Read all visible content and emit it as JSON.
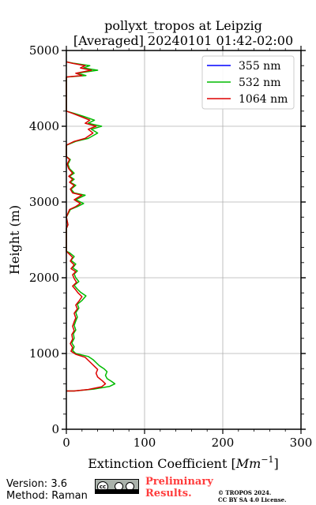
{
  "chart_data": {
    "type": "line",
    "title": "pollyxt_tropos at Leipzig",
    "subtitle": "[Averaged] 20240101 01:42-02:00",
    "xlabel": "Extinction Coefficient [Mm$^{-1}$]",
    "xlabel_text": "Extinction Coefficient [",
    "xlabel_unit": "Mm",
    "xlabel_sup": "−1",
    "xlabel_close": "]",
    "ylabel": "Height (m)",
    "xlim": [
      0,
      300
    ],
    "ylim": [
      0,
      5000
    ],
    "xticks": [
      "0",
      "100",
      "200",
      "300"
    ],
    "yticks": [
      "0",
      "1000",
      "2000",
      "3000",
      "4000",
      "5000"
    ],
    "grid": true,
    "legend_position": "top-right",
    "series": [
      {
        "name": "355 nm",
        "color": "#0000ff",
        "points": []
      },
      {
        "name": "532 nm",
        "color": "#00bb00",
        "points": [
          [
            0,
            505
          ],
          [
            10,
            505
          ],
          [
            35,
            530
          ],
          [
            55,
            565
          ],
          [
            62,
            600
          ],
          [
            58,
            630
          ],
          [
            52,
            670
          ],
          [
            50,
            710
          ],
          [
            52,
            760
          ],
          [
            48,
            800
          ],
          [
            42,
            840
          ],
          [
            38,
            880
          ],
          [
            34,
            920
          ],
          [
            28,
            960
          ],
          [
            12,
            1000
          ],
          [
            8,
            1040
          ],
          [
            10,
            1090
          ],
          [
            7,
            1140
          ],
          [
            10,
            1200
          ],
          [
            9,
            1260
          ],
          [
            12,
            1310
          ],
          [
            10,
            1370
          ],
          [
            12,
            1430
          ],
          [
            14,
            1480
          ],
          [
            12,
            1540
          ],
          [
            16,
            1600
          ],
          [
            14,
            1650
          ],
          [
            20,
            1700
          ],
          [
            25,
            1760
          ],
          [
            18,
            1810
          ],
          [
            14,
            1850
          ],
          [
            10,
            1900
          ],
          [
            16,
            1950
          ],
          [
            12,
            2000
          ],
          [
            10,
            2050
          ],
          [
            14,
            2090
          ],
          [
            8,
            2130
          ],
          [
            12,
            2180
          ],
          [
            6,
            2230
          ],
          [
            10,
            2280
          ],
          [
            4,
            2330
          ],
          [
            0,
            2350
          ],
          [
            0,
            2650
          ],
          [
            2,
            2700
          ],
          [
            0,
            2800
          ],
          [
            5,
            2900
          ],
          [
            14,
            2940
          ],
          [
            22,
            2980
          ],
          [
            12,
            3030
          ],
          [
            18,
            3060
          ],
          [
            24,
            3090
          ],
          [
            10,
            3120
          ],
          [
            6,
            3170
          ],
          [
            12,
            3220
          ],
          [
            5,
            3260
          ],
          [
            10,
            3300
          ],
          [
            4,
            3340
          ],
          [
            10,
            3380
          ],
          [
            4,
            3440
          ],
          [
            2,
            3500
          ],
          [
            5,
            3560
          ],
          [
            0,
            3600
          ],
          [
            0,
            3750
          ],
          [
            12,
            3800
          ],
          [
            28,
            3840
          ],
          [
            40,
            3910
          ],
          [
            32,
            3960
          ],
          [
            45,
            4000
          ],
          [
            28,
            4040
          ],
          [
            36,
            4080
          ],
          [
            22,
            4130
          ],
          [
            10,
            4170
          ],
          [
            0,
            4200
          ],
          [
            0,
            4650
          ],
          [
            25,
            4670
          ],
          [
            14,
            4700
          ],
          [
            40,
            4740
          ],
          [
            22,
            4770
          ],
          [
            30,
            4800
          ],
          [
            10,
            4830
          ],
          [
            0,
            4850
          ]
        ]
      },
      {
        "name": "1064 nm",
        "color": "#dd0000",
        "points": [
          [
            0,
            505
          ],
          [
            10,
            505
          ],
          [
            28,
            525
          ],
          [
            45,
            560
          ],
          [
            50,
            600
          ],
          [
            46,
            640
          ],
          [
            40,
            690
          ],
          [
            38,
            740
          ],
          [
            40,
            790
          ],
          [
            36,
            830
          ],
          [
            32,
            870
          ],
          [
            28,
            910
          ],
          [
            24,
            950
          ],
          [
            12,
            990
          ],
          [
            6,
            1030
          ],
          [
            8,
            1080
          ],
          [
            5,
            1130
          ],
          [
            8,
            1190
          ],
          [
            7,
            1250
          ],
          [
            10,
            1300
          ],
          [
            8,
            1360
          ],
          [
            10,
            1420
          ],
          [
            12,
            1470
          ],
          [
            10,
            1530
          ],
          [
            14,
            1590
          ],
          [
            12,
            1640
          ],
          [
            16,
            1690
          ],
          [
            20,
            1750
          ],
          [
            15,
            1800
          ],
          [
            12,
            1840
          ],
          [
            8,
            1890
          ],
          [
            13,
            1940
          ],
          [
            10,
            1990
          ],
          [
            8,
            2040
          ],
          [
            12,
            2080
          ],
          [
            6,
            2120
          ],
          [
            10,
            2170
          ],
          [
            5,
            2220
          ],
          [
            8,
            2270
          ],
          [
            3,
            2320
          ],
          [
            0,
            2350
          ],
          [
            0,
            2650
          ],
          [
            2,
            2700
          ],
          [
            0,
            2800
          ],
          [
            4,
            2900
          ],
          [
            12,
            2940
          ],
          [
            18,
            2980
          ],
          [
            10,
            3030
          ],
          [
            15,
            3060
          ],
          [
            20,
            3090
          ],
          [
            8,
            3120
          ],
          [
            5,
            3170
          ],
          [
            10,
            3220
          ],
          [
            4,
            3260
          ],
          [
            8,
            3300
          ],
          [
            3,
            3340
          ],
          [
            8,
            3380
          ],
          [
            3,
            3440
          ],
          [
            1,
            3500
          ],
          [
            4,
            3560
          ],
          [
            0,
            3600
          ],
          [
            0,
            3750
          ],
          [
            10,
            3800
          ],
          [
            24,
            3840
          ],
          [
            34,
            3910
          ],
          [
            28,
            3960
          ],
          [
            38,
            4000
          ],
          [
            24,
            4040
          ],
          [
            30,
            4080
          ],
          [
            18,
            4130
          ],
          [
            8,
            4170
          ],
          [
            0,
            4200
          ],
          [
            0,
            4650
          ],
          [
            20,
            4670
          ],
          [
            12,
            4700
          ],
          [
            32,
            4740
          ],
          [
            18,
            4770
          ],
          [
            24,
            4800
          ],
          [
            8,
            4830
          ],
          [
            0,
            4850
          ]
        ]
      }
    ]
  },
  "footer": {
    "version": "Version: 3.6",
    "method": "Method: Raman",
    "cc_symbol": "cc",
    "cc_icon": "creative-commons-by-sa-icon",
    "preliminary_line1": "Preliminary",
    "preliminary_line2": "Results.",
    "preliminary_color": "#ff3c3c",
    "copyright_line1": "© TROPOS 2024.",
    "copyright_line2": "CC BY SA 4.0 License."
  }
}
